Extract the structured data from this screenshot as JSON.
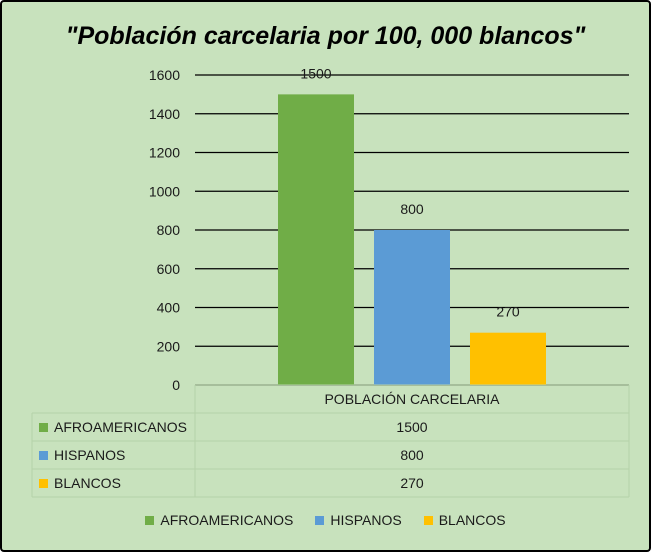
{
  "chart_data": {
    "type": "bar",
    "title": "\"Población carcelaria por 100, 000 blancos\"",
    "categories": [
      "POBLACIÓN CARCELARIA"
    ],
    "series": [
      {
        "name": "AFROAMERICANOS",
        "values": [
          1500
        ],
        "color": "#70ad47"
      },
      {
        "name": "HISPANOS",
        "values": [
          800
        ],
        "color": "#5b9bd5"
      },
      {
        "name": "BLANCOS",
        "values": [
          270
        ],
        "color": "#ffc000"
      }
    ],
    "ylim": [
      0,
      1600
    ],
    "yticks": [
      0,
      200,
      400,
      600,
      800,
      1000,
      1200,
      1400,
      1600
    ],
    "grid": true,
    "data_labels": [
      "1500",
      "800",
      "270"
    ],
    "data_table": {
      "rows": [
        {
          "label": "AFROAMERICANOS",
          "value": "1500"
        },
        {
          "label": "HISPANOS",
          "value": "800"
        },
        {
          "label": "BLANCOS",
          "value": "270"
        }
      ]
    },
    "legend_position": "bottom",
    "background_color": "#c8e2bd"
  }
}
